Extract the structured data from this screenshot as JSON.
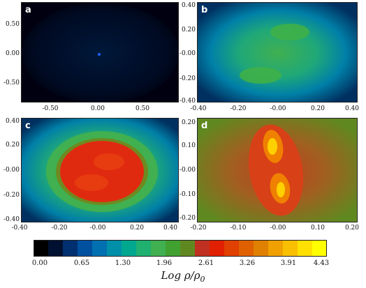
{
  "panels": [
    {
      "label": "a",
      "xticks": [
        "-0.50",
        "0.00",
        "0.50"
      ],
      "yticks": [
        "0.50",
        "0.00",
        "-0.50"
      ]
    },
    {
      "label": "b",
      "xticks": [
        "-0.40",
        "-0.20",
        "-0.00",
        "0.20",
        "0.40"
      ],
      "yticks": [
        "0.40",
        "0.20",
        "-0.00",
        "-0.20",
        "-0.40"
      ]
    },
    {
      "label": "c",
      "xticks": [
        "-0.40",
        "-0.20",
        "-0.00",
        "0.20",
        "0.40"
      ],
      "yticks": [
        "0.40",
        "0.20",
        "-0.00",
        "-0.20",
        "-0.40"
      ]
    },
    {
      "label": "d",
      "xticks": [
        "-0.20",
        "-0.10",
        "-0.00",
        "0.10",
        "0.20"
      ],
      "yticks": [
        "0.20",
        "0.10",
        "-0.00",
        "-0.10",
        "-0.20"
      ]
    }
  ],
  "colorbar": {
    "ticks": [
      "0.00",
      "0.65",
      "1.30",
      "1.96",
      "2.61",
      "3.26",
      "3.91",
      "4.43"
    ],
    "label_main": "Log ρ/ρ",
    "label_sub": "0",
    "colors": [
      "#000000",
      "#001030",
      "#003070",
      "#0050a0",
      "#0070b0",
      "#008fa8",
      "#00a890",
      "#20b070",
      "#40b050",
      "#40a030",
      "#608820",
      "#c03020",
      "#e02000",
      "#e04000",
      "#e06000",
      "#e08000",
      "#f0a000",
      "#f8c000",
      "#ffe000",
      "#ffff00"
    ]
  }
}
